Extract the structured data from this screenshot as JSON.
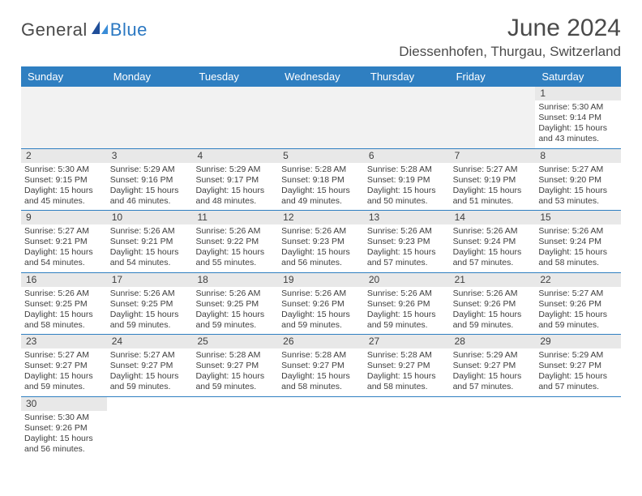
{
  "brand": {
    "part1": "General",
    "part2": "Blue"
  },
  "title": {
    "month": "June 2024",
    "location": "Diessenhofen, Thurgau, Switzerland"
  },
  "colors": {
    "header_bg": "#2f7fc1",
    "header_text": "#ffffff",
    "daynum_bg": "#e8e8e8",
    "row_border": "#2f7fc1",
    "text": "#3e3e3e",
    "brand_gray": "#4a4a4a",
    "brand_blue": "#2b78c2",
    "background": "#ffffff"
  },
  "typography": {
    "month_fontsize": 30,
    "location_fontsize": 17,
    "dayhead_fontsize": 13,
    "daynum_fontsize": 12,
    "cell_fontsize": 10.5,
    "logo_fontsize": 22,
    "font_family": "Arial"
  },
  "day_headers": [
    "Sunday",
    "Monday",
    "Tuesday",
    "Wednesday",
    "Thursday",
    "Friday",
    "Saturday"
  ],
  "weeks": [
    [
      {
        "blank": true
      },
      {
        "blank": true
      },
      {
        "blank": true
      },
      {
        "blank": true
      },
      {
        "blank": true
      },
      {
        "blank": true
      },
      {
        "n": "1",
        "sr": "Sunrise: 5:30 AM",
        "ss": "Sunset: 9:14 PM",
        "d1": "Daylight: 15 hours",
        "d2": "and 43 minutes."
      }
    ],
    [
      {
        "n": "2",
        "sr": "Sunrise: 5:30 AM",
        "ss": "Sunset: 9:15 PM",
        "d1": "Daylight: 15 hours",
        "d2": "and 45 minutes."
      },
      {
        "n": "3",
        "sr": "Sunrise: 5:29 AM",
        "ss": "Sunset: 9:16 PM",
        "d1": "Daylight: 15 hours",
        "d2": "and 46 minutes."
      },
      {
        "n": "4",
        "sr": "Sunrise: 5:29 AM",
        "ss": "Sunset: 9:17 PM",
        "d1": "Daylight: 15 hours",
        "d2": "and 48 minutes."
      },
      {
        "n": "5",
        "sr": "Sunrise: 5:28 AM",
        "ss": "Sunset: 9:18 PM",
        "d1": "Daylight: 15 hours",
        "d2": "and 49 minutes."
      },
      {
        "n": "6",
        "sr": "Sunrise: 5:28 AM",
        "ss": "Sunset: 9:19 PM",
        "d1": "Daylight: 15 hours",
        "d2": "and 50 minutes."
      },
      {
        "n": "7",
        "sr": "Sunrise: 5:27 AM",
        "ss": "Sunset: 9:19 PM",
        "d1": "Daylight: 15 hours",
        "d2": "and 51 minutes."
      },
      {
        "n": "8",
        "sr": "Sunrise: 5:27 AM",
        "ss": "Sunset: 9:20 PM",
        "d1": "Daylight: 15 hours",
        "d2": "and 53 minutes."
      }
    ],
    [
      {
        "n": "9",
        "sr": "Sunrise: 5:27 AM",
        "ss": "Sunset: 9:21 PM",
        "d1": "Daylight: 15 hours",
        "d2": "and 54 minutes."
      },
      {
        "n": "10",
        "sr": "Sunrise: 5:26 AM",
        "ss": "Sunset: 9:21 PM",
        "d1": "Daylight: 15 hours",
        "d2": "and 54 minutes."
      },
      {
        "n": "11",
        "sr": "Sunrise: 5:26 AM",
        "ss": "Sunset: 9:22 PM",
        "d1": "Daylight: 15 hours",
        "d2": "and 55 minutes."
      },
      {
        "n": "12",
        "sr": "Sunrise: 5:26 AM",
        "ss": "Sunset: 9:23 PM",
        "d1": "Daylight: 15 hours",
        "d2": "and 56 minutes."
      },
      {
        "n": "13",
        "sr": "Sunrise: 5:26 AM",
        "ss": "Sunset: 9:23 PM",
        "d1": "Daylight: 15 hours",
        "d2": "and 57 minutes."
      },
      {
        "n": "14",
        "sr": "Sunrise: 5:26 AM",
        "ss": "Sunset: 9:24 PM",
        "d1": "Daylight: 15 hours",
        "d2": "and 57 minutes."
      },
      {
        "n": "15",
        "sr": "Sunrise: 5:26 AM",
        "ss": "Sunset: 9:24 PM",
        "d1": "Daylight: 15 hours",
        "d2": "and 58 minutes."
      }
    ],
    [
      {
        "n": "16",
        "sr": "Sunrise: 5:26 AM",
        "ss": "Sunset: 9:25 PM",
        "d1": "Daylight: 15 hours",
        "d2": "and 58 minutes."
      },
      {
        "n": "17",
        "sr": "Sunrise: 5:26 AM",
        "ss": "Sunset: 9:25 PM",
        "d1": "Daylight: 15 hours",
        "d2": "and 59 minutes."
      },
      {
        "n": "18",
        "sr": "Sunrise: 5:26 AM",
        "ss": "Sunset: 9:25 PM",
        "d1": "Daylight: 15 hours",
        "d2": "and 59 minutes."
      },
      {
        "n": "19",
        "sr": "Sunrise: 5:26 AM",
        "ss": "Sunset: 9:26 PM",
        "d1": "Daylight: 15 hours",
        "d2": "and 59 minutes."
      },
      {
        "n": "20",
        "sr": "Sunrise: 5:26 AM",
        "ss": "Sunset: 9:26 PM",
        "d1": "Daylight: 15 hours",
        "d2": "and 59 minutes."
      },
      {
        "n": "21",
        "sr": "Sunrise: 5:26 AM",
        "ss": "Sunset: 9:26 PM",
        "d1": "Daylight: 15 hours",
        "d2": "and 59 minutes."
      },
      {
        "n": "22",
        "sr": "Sunrise: 5:27 AM",
        "ss": "Sunset: 9:26 PM",
        "d1": "Daylight: 15 hours",
        "d2": "and 59 minutes."
      }
    ],
    [
      {
        "n": "23",
        "sr": "Sunrise: 5:27 AM",
        "ss": "Sunset: 9:27 PM",
        "d1": "Daylight: 15 hours",
        "d2": "and 59 minutes."
      },
      {
        "n": "24",
        "sr": "Sunrise: 5:27 AM",
        "ss": "Sunset: 9:27 PM",
        "d1": "Daylight: 15 hours",
        "d2": "and 59 minutes."
      },
      {
        "n": "25",
        "sr": "Sunrise: 5:28 AM",
        "ss": "Sunset: 9:27 PM",
        "d1": "Daylight: 15 hours",
        "d2": "and 59 minutes."
      },
      {
        "n": "26",
        "sr": "Sunrise: 5:28 AM",
        "ss": "Sunset: 9:27 PM",
        "d1": "Daylight: 15 hours",
        "d2": "and 58 minutes."
      },
      {
        "n": "27",
        "sr": "Sunrise: 5:28 AM",
        "ss": "Sunset: 9:27 PM",
        "d1": "Daylight: 15 hours",
        "d2": "and 58 minutes."
      },
      {
        "n": "28",
        "sr": "Sunrise: 5:29 AM",
        "ss": "Sunset: 9:27 PM",
        "d1": "Daylight: 15 hours",
        "d2": "and 57 minutes."
      },
      {
        "n": "29",
        "sr": "Sunrise: 5:29 AM",
        "ss": "Sunset: 9:27 PM",
        "d1": "Daylight: 15 hours",
        "d2": "and 57 minutes."
      }
    ],
    [
      {
        "n": "30",
        "sr": "Sunrise: 5:30 AM",
        "ss": "Sunset: 9:26 PM",
        "d1": "Daylight: 15 hours",
        "d2": "and 56 minutes."
      },
      {
        "blank": true,
        "noborder": true
      },
      {
        "blank": true,
        "noborder": true
      },
      {
        "blank": true,
        "noborder": true
      },
      {
        "blank": true,
        "noborder": true
      },
      {
        "blank": true,
        "noborder": true
      },
      {
        "blank": true,
        "noborder": true
      }
    ]
  ]
}
